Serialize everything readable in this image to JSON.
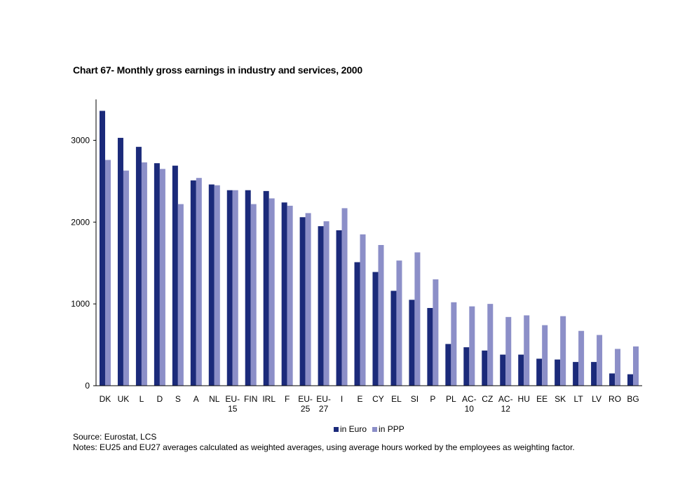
{
  "title": "Chart 67- Monthly gross earnings in industry and services, 2000",
  "source": "Source: Eurostat, LCS",
  "notes": "Notes: EU25 and EU27 averages calculated as weighted averages, using average hours worked by the employees as weighting factor.",
  "colors": {
    "euro": "#1b2a7a",
    "ppp": "#8c8fc8",
    "axis": "#000000"
  },
  "chart_data": {
    "type": "bar",
    "title": "Chart 67- Monthly gross earnings in industry and services, 2000",
    "xlabel": "",
    "ylabel": "",
    "ylim": [
      0,
      3500
    ],
    "yticks": [
      0,
      1000,
      2000,
      3000
    ],
    "grid": false,
    "legend_position": "bottom",
    "categories": [
      "DK",
      "UK",
      "L",
      "D",
      "S",
      "A",
      "NL",
      "EU-15",
      "FIN",
      "IRL",
      "F",
      "EU-25",
      "EU-27",
      "I",
      "E",
      "CY",
      "EL",
      "SI",
      "P",
      "PL",
      "AC-10",
      "CZ",
      "AC-12",
      "HU",
      "EE",
      "SK",
      "LT",
      "LV",
      "RO",
      "BG"
    ],
    "series": [
      {
        "name": "in Euro",
        "values": [
          3360,
          3030,
          2920,
          2720,
          2690,
          2510,
          2460,
          2390,
          2390,
          2380,
          2240,
          2060,
          1950,
          1900,
          1510,
          1390,
          1160,
          1050,
          950,
          510,
          470,
          430,
          380,
          380,
          330,
          320,
          290,
          290,
          150,
          140
        ]
      },
      {
        "name": "in PPP",
        "values": [
          2760,
          2630,
          2730,
          2650,
          2220,
          2540,
          2450,
          2390,
          2220,
          2290,
          2200,
          2110,
          2010,
          2170,
          1850,
          1720,
          1530,
          1630,
          1300,
          1020,
          970,
          1000,
          840,
          860,
          740,
          850,
          670,
          620,
          450,
          480
        ]
      }
    ]
  }
}
